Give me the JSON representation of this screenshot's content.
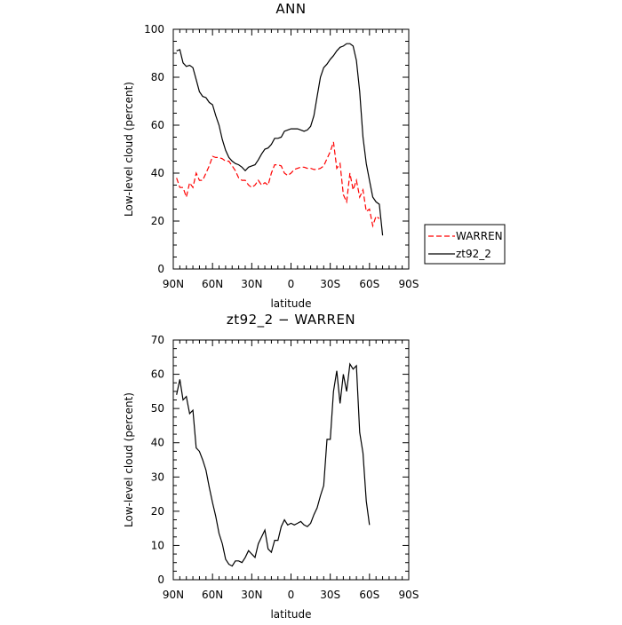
{
  "chart_data": [
    {
      "type": "line",
      "title": "ANN",
      "xlabel": "latitude",
      "ylabel": "Low-level cloud (percent)",
      "x_tick_labels": [
        "90N",
        "60N",
        "30N",
        "0",
        "30S",
        "60S",
        "90S"
      ],
      "x_ticks": [
        -90,
        -60,
        -30,
        0,
        30,
        60,
        90
      ],
      "y_ticks": [
        0,
        20,
        40,
        60,
        80,
        100
      ],
      "ylim": [
        0,
        100
      ],
      "xlim": [
        -90,
        90
      ],
      "legend": "outside-right",
      "x": [
        -87.5,
        -85,
        -82.5,
        -80,
        -77.5,
        -75,
        -72.5,
        -70,
        -67.5,
        -65,
        -62.5,
        -60,
        -57.5,
        -55,
        -52.5,
        -50,
        -47.5,
        -45,
        -42.5,
        -40,
        -37.5,
        -35,
        -32.5,
        -30,
        -27.5,
        -25,
        -22.5,
        -20,
        -17.5,
        -15,
        -12.5,
        -10,
        -7.5,
        -5,
        -2.5,
        0,
        2.5,
        5,
        7.5,
        10,
        12.5,
        15,
        17.5,
        20,
        22.5,
        25,
        27.5,
        30,
        32.5,
        35,
        37.5,
        40,
        42.5,
        45,
        47.5,
        50,
        52.5,
        55,
        57.5,
        60,
        62.5,
        65,
        67.5,
        70,
        72.5,
        75,
        77.5,
        80,
        82.5,
        85,
        87.5
      ],
      "series": [
        {
          "name": "WARREN",
          "color": "#ff0000",
          "dash": "dashed",
          "values": [
            38,
            34,
            34,
            30,
            36,
            34,
            40,
            37,
            37,
            40,
            43,
            47,
            46.5,
            46.5,
            46,
            45,
            45,
            43,
            41,
            38,
            37,
            37,
            35,
            34,
            35,
            37,
            35,
            36,
            35,
            40,
            43.5,
            43.5,
            43,
            40,
            39,
            40,
            41.5,
            42,
            42.5,
            42.5,
            42,
            42,
            41.5,
            41.5,
            42,
            43,
            46,
            49,
            53,
            42,
            44,
            31,
            28,
            40,
            33,
            37,
            30,
            33,
            24,
            25,
            18,
            22,
            21,
            null,
            null,
            null,
            null,
            null,
            null,
            null,
            null
          ]
        },
        {
          "name": "zt92_2",
          "color": "#000000",
          "dash": "solid",
          "values": [
            91,
            91.5,
            86,
            84.5,
            85,
            84,
            79,
            74,
            72,
            71.5,
            69.5,
            68.5,
            64,
            60,
            54,
            49.5,
            46.5,
            45,
            44,
            43.5,
            42.5,
            41,
            42.5,
            43,
            43.5,
            45.5,
            48,
            50,
            50.5,
            52,
            54.5,
            54.5,
            55,
            57.5,
            58,
            58.5,
            58.5,
            58.5,
            58,
            57.5,
            58,
            59.5,
            64,
            72,
            80,
            84,
            85.5,
            87.5,
            89,
            91,
            92.5,
            93,
            94,
            94,
            93,
            87,
            74,
            55,
            44,
            37,
            30,
            28,
            27,
            14,
            null,
            null,
            null,
            null,
            null,
            null,
            null
          ]
        }
      ]
    },
    {
      "type": "line",
      "title": "zt92_2 − WARREN",
      "xlabel": "latitude",
      "ylabel": "Low-level cloud (percent)",
      "x_tick_labels": [
        "90N",
        "60N",
        "30N",
        "0",
        "30S",
        "60S",
        "90S"
      ],
      "x_ticks": [
        -90,
        -60,
        -30,
        0,
        30,
        60,
        90
      ],
      "y_ticks": [
        0,
        10,
        20,
        30,
        40,
        50,
        60,
        70
      ],
      "ylim": [
        0,
        70
      ],
      "xlim": [
        -90,
        90
      ],
      "x": [
        -87.5,
        -85,
        -82.5,
        -80,
        -77.5,
        -75,
        -72.5,
        -70,
        -67.5,
        -65,
        -62.5,
        -60,
        -57.5,
        -55,
        -52.5,
        -50,
        -47.5,
        -45,
        -42.5,
        -40,
        -37.5,
        -35,
        -32.5,
        -30,
        -27.5,
        -25,
        -22.5,
        -20,
        -17.5,
        -15,
        -12.5,
        -10,
        -7.5,
        -5,
        -2.5,
        0,
        2.5,
        5,
        7.5,
        10,
        12.5,
        15,
        17.5,
        20,
        22.5,
        25,
        27.5,
        30,
        32.5,
        35,
        37.5,
        40,
        42.5,
        45,
        47.5,
        50,
        52.5,
        55,
        57.5,
        60,
        62.5,
        65,
        67.5,
        70,
        72.5,
        75,
        77.5
      ],
      "series": [
        {
          "name": "zt92_2 − WARREN",
          "color": "#000000",
          "dash": "solid",
          "values": [
            54,
            58.5,
            52.5,
            53.5,
            48.5,
            49.5,
            38.5,
            37.5,
            35,
            32,
            27,
            22.5,
            18.5,
            13.5,
            10.5,
            6,
            4.5,
            4,
            5.5,
            5.5,
            5,
            6.5,
            8.5,
            7.5,
            6.5,
            10.5,
            12.5,
            14.5,
            9,
            8,
            11.5,
            11.5,
            15.5,
            17.5,
            16,
            16.5,
            16,
            16.5,
            17,
            16,
            15.5,
            16.5,
            19,
            21,
            24.5,
            27.5,
            41,
            41,
            55,
            61,
            51.5,
            60,
            55,
            63,
            61.5,
            62.5,
            43,
            37,
            23,
            16,
            null,
            null,
            null,
            null,
            null,
            null,
            null
          ]
        }
      ]
    }
  ]
}
